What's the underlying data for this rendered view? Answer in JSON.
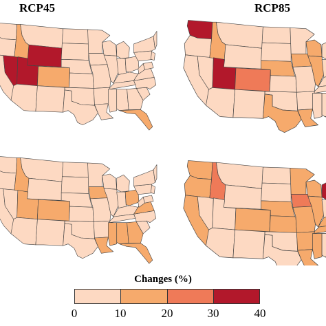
{
  "titles": {
    "left": "RCP45",
    "right": "RCP85"
  },
  "colors": {
    "c1": "#fdd9c2",
    "c2": "#f6aa6c",
    "c3": "#ef7a58",
    "c4": "#b2182b",
    "border": "#444444",
    "background": "#ffffff"
  },
  "legend": {
    "title": "Changes  (%)",
    "ticks": [
      "0",
      "10",
      "20",
      "30",
      "40"
    ],
    "classes": [
      "c1",
      "c2",
      "c3",
      "c4"
    ]
  },
  "maps": {
    "top_left": {
      "scenario": "RCP45",
      "Idaho": "c2",
      "Wyoming": "c4",
      "Utah": "c4",
      "Nevada": "c4",
      "Colorado": "c2",
      "Florida": "c2",
      "Arizona": "c1",
      "NewMexico": "c1"
    },
    "top_right": {
      "scenario": "RCP85",
      "Washington": "c4",
      "Idaho": "c2",
      "Utah": "c4",
      "Colorado": "c3",
      "Nebraska": "c2",
      "Iowa": "c2",
      "Illinois": "c2",
      "Wisconsin": "c2",
      "Texas": "c2",
      "Louisiana": "c2",
      "Pennsylvania": "c2",
      "Ohio": "c2"
    },
    "bottom_left": {
      "scenario": "RCP45",
      "Idaho": "c2",
      "Utah": "c2",
      "Colorado": "c2",
      "Iowa": "c2",
      "Ohio": "c2",
      "Virginia": "c2",
      "Georgia": "c2",
      "Florida": "c2",
      "Louisiana": "c2",
      "Mississippi": "c2",
      "Alabama": "c2"
    },
    "bottom_right": {
      "scenario": "RCP85",
      "Washington": "c2",
      "Oregon": "c2",
      "California": "c2",
      "Idaho": "c3",
      "Nevada": "c1",
      "Utah": "c1",
      "Colorado": "c2",
      "Nebraska": "c2",
      "Kansas": "c2",
      "Minnesota": "c2",
      "Iowa": "c3",
      "Wisconsin": "c2",
      "Michigan": "c4",
      "Illinois": "c2",
      "Missouri": "c2",
      "Arkansas": "c2",
      "Tennessee": "c2",
      "Kentucky": "c2",
      "Ohio": "c2",
      "Louisiana": "c2",
      "Mississippi": "c2",
      "Texas": "c1"
    }
  }
}
